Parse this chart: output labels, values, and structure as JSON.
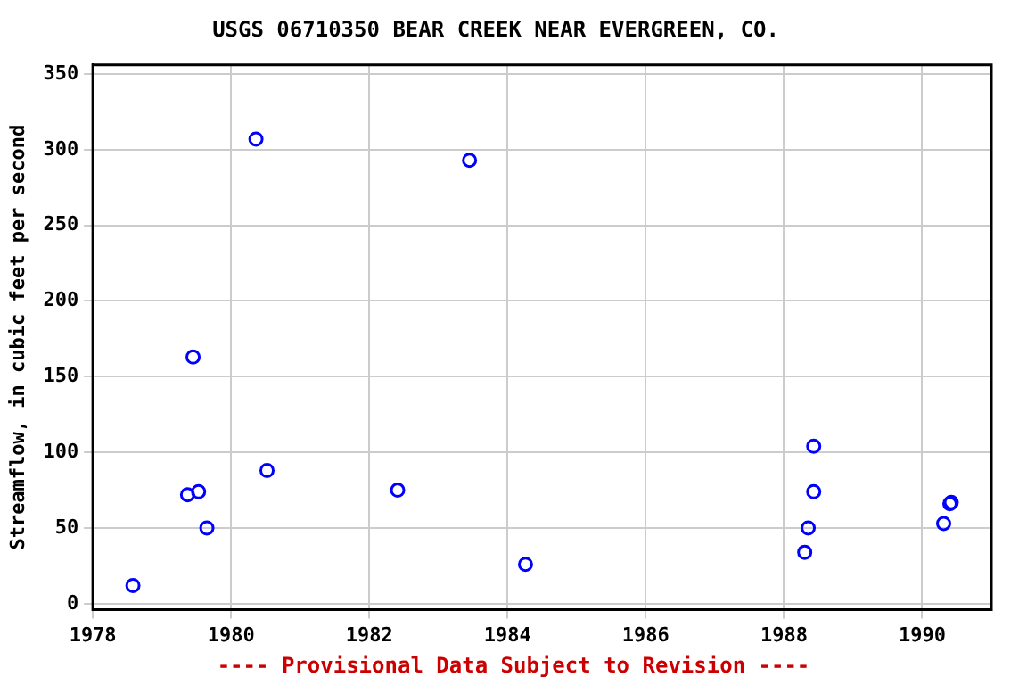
{
  "chart_data": {
    "type": "scatter",
    "title": "USGS 06710350 BEAR CREEK NEAR EVERGREEN, CO.",
    "ylabel": "Streamflow, in cubic feet per second",
    "annotations": [
      "---- Provisional Data Subject to Revision ----"
    ],
    "x": [
      1978.58,
      1979.37,
      1979.45,
      1979.53,
      1979.65,
      1980.36,
      1980.52,
      1982.41,
      1983.45,
      1984.26,
      1988.3,
      1988.35,
      1988.43,
      1988.43,
      1990.31,
      1990.4,
      1990.42
    ],
    "values": [
      12,
      72,
      163,
      74,
      50,
      307,
      88,
      75,
      293,
      26,
      34,
      50,
      74,
      104,
      53,
      66,
      67
    ],
    "color": "#0000ff",
    "marker": "circle",
    "grid": true,
    "xlim": [
      1978,
      1991
    ],
    "xticks": [
      1978,
      1980,
      1982,
      1984,
      1986,
      1988,
      1990
    ],
    "ylim": [
      -4,
      356
    ],
    "yticks": [
      0,
      50,
      100,
      150,
      200,
      250,
      300,
      350
    ]
  }
}
